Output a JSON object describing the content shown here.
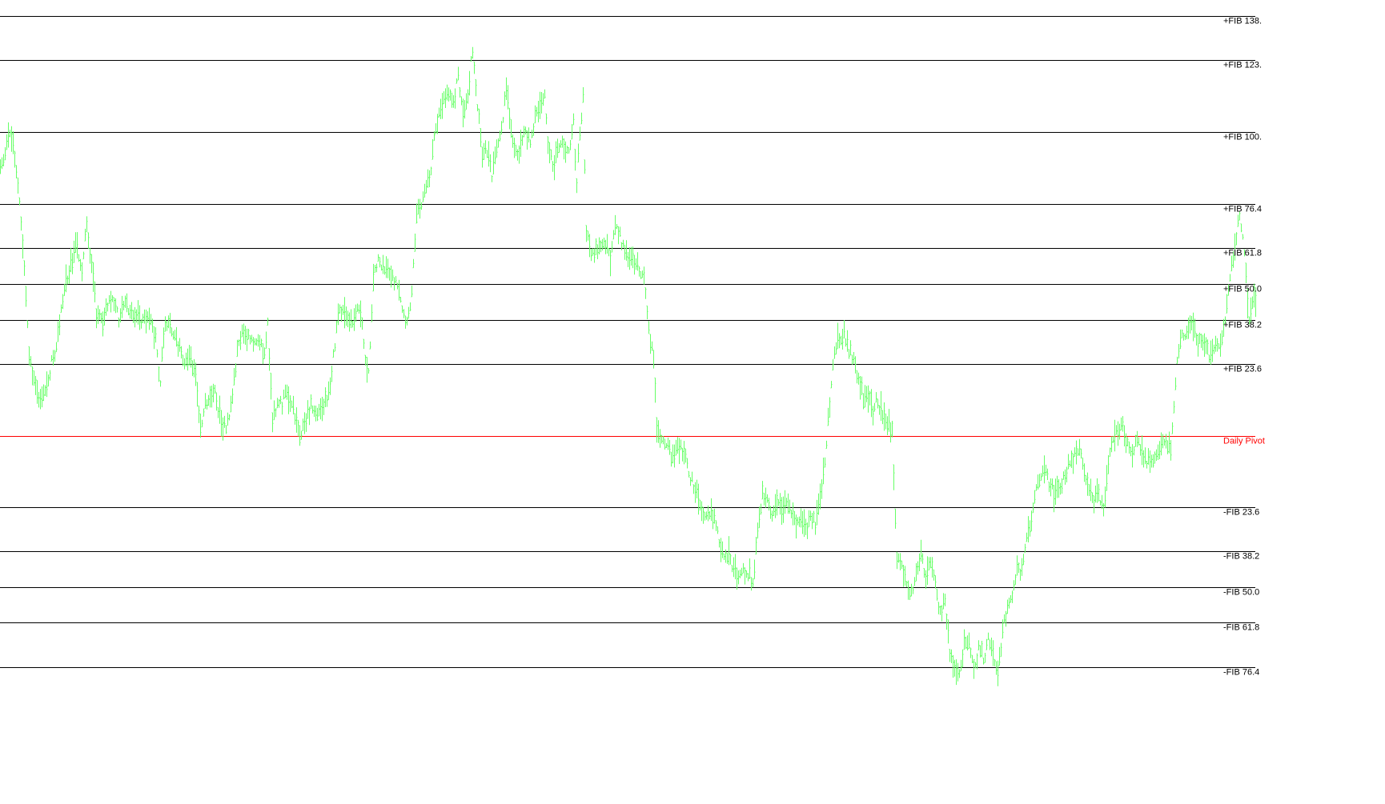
{
  "chart_data": {
    "type": "line",
    "chart_style": "bar-ticks",
    "title": "",
    "xlabel": "",
    "ylabel": "",
    "grid": false,
    "legend": "none",
    "colors": {
      "background": "#ffffff",
      "price": "#66ff66",
      "fib_line": "#000000",
      "pivot_line": "#ff0000",
      "fib_label": "#000000",
      "pivot_label": "#ff0000"
    },
    "value_scale": "fib-percent",
    "ylim": [
      -88,
      144
    ],
    "levels": [
      {
        "label": "+FIB 138.",
        "value": 138.2,
        "kind": "fib"
      },
      {
        "label": "+FIB 123.",
        "value": 123.6,
        "kind": "fib"
      },
      {
        "label": "+FIB 100.",
        "value": 100.0,
        "kind": "fib"
      },
      {
        "label": "+FIB 76.4",
        "value": 76.4,
        "kind": "fib"
      },
      {
        "label": "+FIB 61.8",
        "value": 61.8,
        "kind": "fib"
      },
      {
        "label": "+FIB 50.0",
        "value": 50.0,
        "kind": "fib"
      },
      {
        "label": "+FIB 38.2",
        "value": 38.2,
        "kind": "fib"
      },
      {
        "label": "+FIB 23.6",
        "value": 23.6,
        "kind": "fib"
      },
      {
        "label": "Daily Pivot",
        "value": 0.0,
        "kind": "pivot"
      },
      {
        "label": "-FIB 23.6",
        "value": -23.6,
        "kind": "fib"
      },
      {
        "label": "-FIB 38.2",
        "value": -38.2,
        "kind": "fib"
      },
      {
        "label": "-FIB 50.0",
        "value": -50.0,
        "kind": "fib"
      },
      {
        "label": "-FIB 61.8",
        "value": -61.8,
        "kind": "fib"
      },
      {
        "label": "-FIB 76.4",
        "value": -76.4,
        "kind": "fib"
      }
    ],
    "series": [
      {
        "kind": "price",
        "points": [
          [
            0,
            89.5
          ],
          [
            6,
            92.0
          ],
          [
            12,
            100.8
          ],
          [
            18,
            92.9
          ],
          [
            25,
            73.1
          ],
          [
            30,
            55.5
          ],
          [
            36,
            28.0
          ],
          [
            42,
            17.5
          ],
          [
            48,
            11.8
          ],
          [
            55,
            13.2
          ],
          [
            62,
            21.8
          ],
          [
            68,
            28.5
          ],
          [
            74,
            36.9
          ],
          [
            80,
            48.4
          ],
          [
            88,
            57.6
          ],
          [
            96,
            62.2
          ],
          [
            102,
            55.5
          ],
          [
            108,
            70.0
          ],
          [
            114,
            55.5
          ],
          [
            120,
            40.7
          ],
          [
            126,
            36.9
          ],
          [
            132,
            42.6
          ],
          [
            140,
            46.4
          ],
          [
            148,
            38.8
          ],
          [
            156,
            43.5
          ],
          [
            164,
            40.7
          ],
          [
            172,
            39.7
          ],
          [
            180,
            37.8
          ],
          [
            188,
            38.8
          ],
          [
            194,
            31.3
          ],
          [
            200,
            17.5
          ],
          [
            205,
            36.9
          ],
          [
            212,
            36.0
          ],
          [
            220,
            32.2
          ],
          [
            228,
            24.5
          ],
          [
            236,
            26.4
          ],
          [
            244,
            20.6
          ],
          [
            250,
            3.0
          ],
          [
            258,
            11.8
          ],
          [
            266,
            15.6
          ],
          [
            274,
            7.0
          ],
          [
            282,
            0.8
          ],
          [
            290,
            13.2
          ],
          [
            298,
            32.2
          ],
          [
            306,
            33.1
          ],
          [
            314,
            30.3
          ],
          [
            322,
            33.1
          ],
          [
            330,
            26.4
          ],
          [
            334,
            36.9
          ],
          [
            340,
            3.8
          ],
          [
            346,
            11.8
          ],
          [
            352,
            9.9
          ],
          [
            358,
            15.6
          ],
          [
            366,
            8.9
          ],
          [
            374,
            1.0
          ],
          [
            380,
            3.8
          ],
          [
            388,
            9.9
          ],
          [
            396,
            7.0
          ],
          [
            404,
            9.9
          ],
          [
            412,
            17.5
          ],
          [
            418,
            30.3
          ],
          [
            424,
            42.6
          ],
          [
            432,
            38.8
          ],
          [
            440,
            36.9
          ],
          [
            448,
            43.5
          ],
          [
            456,
            26.4
          ],
          [
            460,
            19.7
          ],
          [
            466,
            51.9
          ],
          [
            472,
            59.5
          ],
          [
            478,
            53.8
          ],
          [
            484,
            55.7
          ],
          [
            490,
            51.9
          ],
          [
            496,
            48.4
          ],
          [
            502,
            40.7
          ],
          [
            508,
            36.0
          ],
          [
            512,
            42.6
          ],
          [
            516,
            55.5
          ],
          [
            520,
            74.0
          ],
          [
            528,
            78.2
          ],
          [
            536,
            84.7
          ],
          [
            542,
            97.2
          ],
          [
            548,
            106.7
          ],
          [
            554,
            111.4
          ],
          [
            560,
            113.3
          ],
          [
            566,
            110.5
          ],
          [
            572,
            118.4
          ],
          [
            578,
            105.8
          ],
          [
            584,
            112.4
          ],
          [
            590,
            127.2
          ],
          [
            596,
            109.5
          ],
          [
            602,
            91.2
          ],
          [
            608,
            94.1
          ],
          [
            614,
            85.6
          ],
          [
            620,
            93.1
          ],
          [
            626,
            101.8
          ],
          [
            632,
            113.3
          ],
          [
            638,
            99.9
          ],
          [
            644,
            93.1
          ],
          [
            650,
            96.0
          ],
          [
            656,
            100.8
          ],
          [
            662,
            97.9
          ],
          [
            668,
            104.8
          ],
          [
            674,
            109.5
          ],
          [
            680,
            111.4
          ],
          [
            686,
            91.2
          ],
          [
            692,
            89.3
          ],
          [
            698,
            96.0
          ],
          [
            704,
            95.0
          ],
          [
            710,
            93.1
          ],
          [
            716,
            102.7
          ],
          [
            720,
            82.8
          ],
          [
            724,
            99.9
          ],
          [
            728,
            111.4
          ],
          [
            732,
            67.7
          ],
          [
            738,
            60.1
          ],
          [
            744,
            61.0
          ],
          [
            750,
            63.8
          ],
          [
            756,
            62.9
          ],
          [
            762,
            59.1
          ],
          [
            768,
            70.6
          ],
          [
            774,
            66.8
          ],
          [
            780,
            60.1
          ],
          [
            786,
            59.1
          ],
          [
            792,
            58.0
          ],
          [
            798,
            53.8
          ],
          [
            804,
            51.0
          ],
          [
            810,
            36.0
          ],
          [
            816,
            23.6
          ],
          [
            820,
            3.8
          ],
          [
            826,
            -2.1
          ],
          [
            832,
            -2.9
          ],
          [
            838,
            -6.7
          ],
          [
            844,
            -3.9
          ],
          [
            850,
            -4.8
          ],
          [
            856,
            -7.7
          ],
          [
            862,
            -13.4
          ],
          [
            868,
            -17.3
          ],
          [
            874,
            -22.9
          ],
          [
            880,
            -24.8
          ],
          [
            886,
            -24.8
          ],
          [
            892,
            -27.6
          ],
          [
            898,
            -34.3
          ],
          [
            904,
            -41.9
          ],
          [
            910,
            -39.9
          ],
          [
            916,
            -42.9
          ],
          [
            922,
            -45.7
          ],
          [
            928,
            -44.8
          ],
          [
            934,
            -44.8
          ],
          [
            940,
            -49.6
          ],
          [
            946,
            -30.5
          ],
          [
            952,
            -19.1
          ],
          [
            958,
            -20.1
          ],
          [
            964,
            -24.8
          ],
          [
            970,
            -21.0
          ],
          [
            976,
            -23.9
          ],
          [
            982,
            -22.0
          ],
          [
            988,
            -24.8
          ],
          [
            994,
            -28.6
          ],
          [
            1000,
            -29.6
          ],
          [
            1006,
            -30.5
          ],
          [
            1012,
            -25.8
          ],
          [
            1018,
            -29.6
          ],
          [
            1024,
            -20.1
          ],
          [
            1030,
            -8.6
          ],
          [
            1036,
            11.8
          ],
          [
            1042,
            28.5
          ],
          [
            1048,
            31.3
          ],
          [
            1054,
            34.1
          ],
          [
            1060,
            28.5
          ],
          [
            1066,
            24.5
          ],
          [
            1072,
            17.5
          ],
          [
            1078,
            12.7
          ],
          [
            1084,
            13.7
          ],
          [
            1090,
            8.9
          ],
          [
            1096,
            11.8
          ],
          [
            1102,
            7.0
          ],
          [
            1108,
            4.2
          ],
          [
            1114,
            1.0
          ],
          [
            1120,
            -40.9
          ],
          [
            1126,
            -42.9
          ],
          [
            1132,
            -49.6
          ],
          [
            1138,
            -52.4
          ],
          [
            1144,
            -45.7
          ],
          [
            1150,
            -39.0
          ],
          [
            1156,
            -46.6
          ],
          [
            1162,
            -40.9
          ],
          [
            1168,
            -47.6
          ],
          [
            1174,
            -59.1
          ],
          [
            1180,
            -54.3
          ],
          [
            1186,
            -70.5
          ],
          [
            1192,
            -75.3
          ],
          [
            1198,
            -79.1
          ],
          [
            1204,
            -68.6
          ],
          [
            1210,
            -66.7
          ],
          [
            1216,
            -76.2
          ],
          [
            1222,
            -70.5
          ],
          [
            1228,
            -73.4
          ],
          [
            1234,
            -66.7
          ],
          [
            1240,
            -73.4
          ],
          [
            1246,
            -79.1
          ],
          [
            1252,
            -64.8
          ],
          [
            1258,
            -55.3
          ],
          [
            1264,
            -51.5
          ],
          [
            1270,
            -44.8
          ],
          [
            1276,
            -43.8
          ],
          [
            1282,
            -34.3
          ],
          [
            1288,
            -27.6
          ],
          [
            1294,
            -17.3
          ],
          [
            1300,
            -11.5
          ],
          [
            1306,
            -12.4
          ],
          [
            1312,
            -17.3
          ],
          [
            1318,
            -19.1
          ],
          [
            1324,
            -17.3
          ],
          [
            1330,
            -12.4
          ],
          [
            1336,
            -8.6
          ],
          [
            1342,
            -6.7
          ],
          [
            1348,
            -4.8
          ],
          [
            1354,
            -11.5
          ],
          [
            1360,
            -18.2
          ],
          [
            1366,
            -21.0
          ],
          [
            1372,
            -20.1
          ],
          [
            1378,
            -23.9
          ],
          [
            1384,
            -7.7
          ],
          [
            1390,
            0.0
          ],
          [
            1396,
            1.0
          ],
          [
            1402,
            2.9
          ],
          [
            1408,
            -2.1
          ],
          [
            1414,
            -4.8
          ],
          [
            1420,
            -1.0
          ],
          [
            1426,
            -6.7
          ],
          [
            1432,
            -8.6
          ],
          [
            1438,
            -7.7
          ],
          [
            1444,
            -4.8
          ],
          [
            1450,
            -2.1
          ],
          [
            1456,
            -1.0
          ],
          [
            1462,
            -5.8
          ],
          [
            1466,
            9.9
          ],
          [
            1470,
            26.4
          ],
          [
            1476,
            32.2
          ],
          [
            1482,
            35.0
          ],
          [
            1488,
            36.9
          ],
          [
            1494,
            33.1
          ],
          [
            1500,
            30.3
          ],
          [
            1506,
            29.4
          ],
          [
            1512,
            25.5
          ],
          [
            1518,
            30.3
          ],
          [
            1524,
            28.5
          ],
          [
            1530,
            36.9
          ],
          [
            1536,
            51.9
          ],
          [
            1542,
            61.8
          ],
          [
            1548,
            73.1
          ],
          [
            1554,
            59.5
          ],
          [
            1560,
            38.8
          ],
          [
            1566,
            45.5
          ],
          [
            1567,
            44.5
          ]
        ]
      }
    ]
  }
}
